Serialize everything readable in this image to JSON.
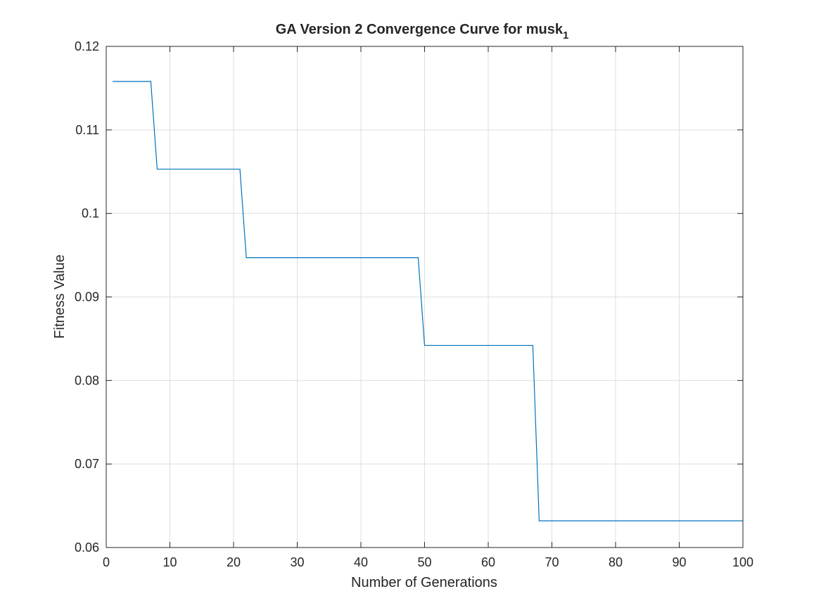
{
  "chart_data": {
    "type": "line",
    "title": "GA Version 2 Convergence Curve for musk",
    "title_subscript": "1",
    "xlabel": "Number of Generations",
    "ylabel": "Fitness Value",
    "xlim": [
      0,
      100
    ],
    "ylim": [
      0.06,
      0.12
    ],
    "grid": true,
    "x_ticks": [
      0,
      10,
      20,
      30,
      40,
      50,
      60,
      70,
      80,
      90,
      100
    ],
    "x_tick_labels": [
      "0",
      "10",
      "20",
      "30",
      "40",
      "50",
      "60",
      "70",
      "80",
      "90",
      "100"
    ],
    "y_ticks": [
      0.06,
      0.07,
      0.08,
      0.09,
      0.1,
      0.11,
      0.12
    ],
    "y_tick_labels": [
      "0.06",
      "0.07",
      "0.08",
      "0.09",
      "0.1",
      "0.11",
      "0.12"
    ],
    "series": [
      {
        "color": "#0072bd",
        "points": [
          [
            1,
            0.1158
          ],
          [
            7,
            0.1158
          ],
          [
            8,
            0.1053
          ],
          [
            21,
            0.1053
          ],
          [
            22,
            0.0947
          ],
          [
            49,
            0.0947
          ],
          [
            50,
            0.0842
          ],
          [
            67,
            0.0842
          ],
          [
            68,
            0.0632
          ],
          [
            100,
            0.0632
          ]
        ]
      }
    ]
  }
}
